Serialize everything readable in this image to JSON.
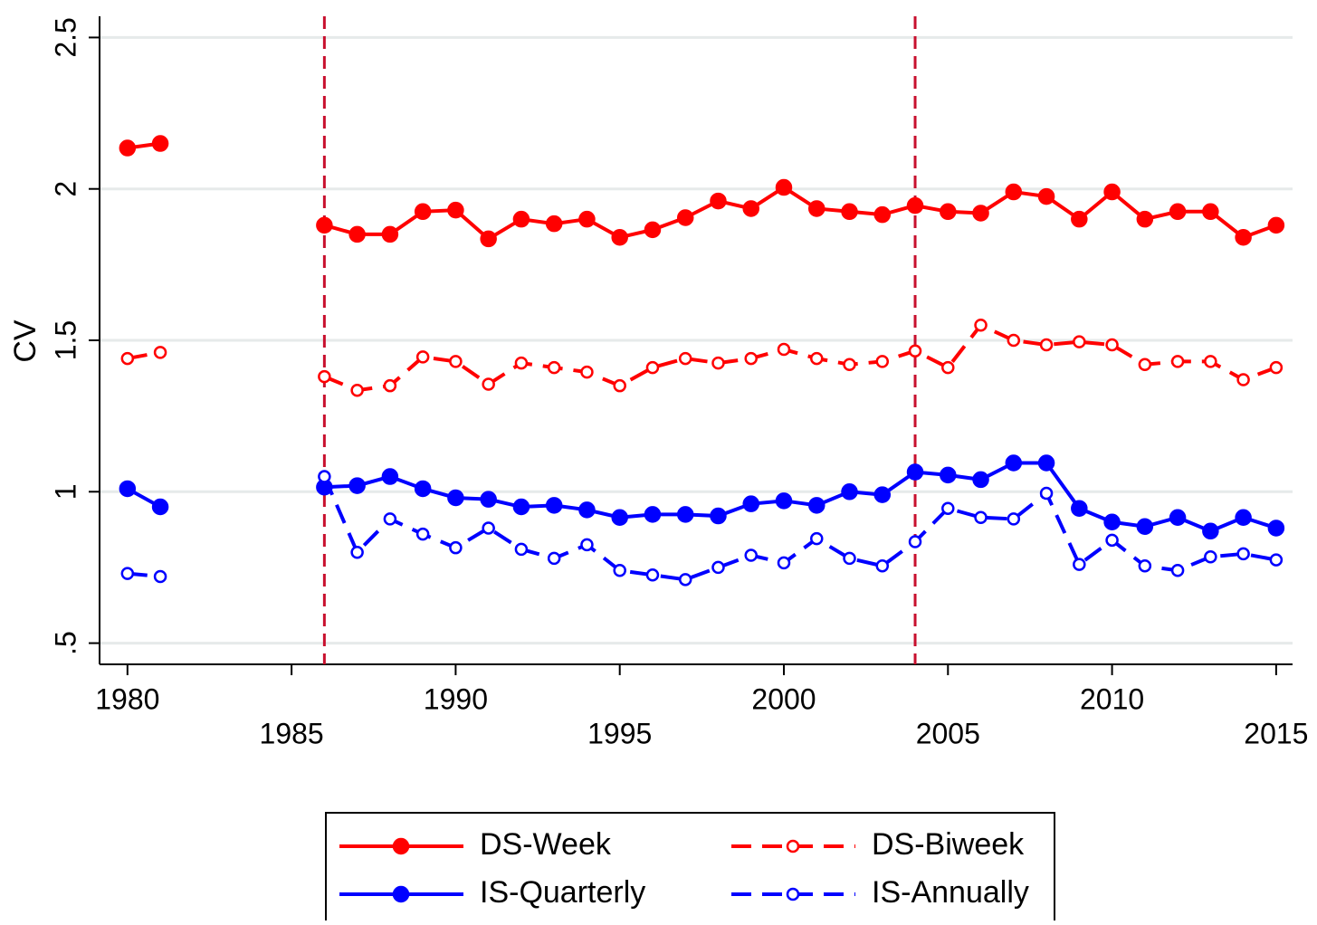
{
  "chart_data": {
    "type": "line",
    "y_label": "CV",
    "x": [
      1980,
      1981,
      1982,
      1983,
      1984,
      1985,
      1986,
      1987,
      1988,
      1989,
      1990,
      1991,
      1992,
      1993,
      1994,
      1995,
      1996,
      1997,
      1998,
      1999,
      2000,
      2001,
      2002,
      2003,
      2004,
      2005,
      2006,
      2007,
      2008,
      2009,
      2010,
      2011,
      2012,
      2013,
      2014,
      2015
    ],
    "series": [
      {
        "name": "DS-Week",
        "color": "#ff0000",
        "dashed": false,
        "marker": "filled",
        "values": [
          2.135,
          2.15,
          null,
          null,
          null,
          null,
          1.88,
          1.85,
          1.85,
          1.925,
          1.93,
          1.835,
          1.9,
          1.885,
          1.9,
          1.84,
          1.865,
          1.905,
          1.96,
          1.935,
          2.005,
          1.935,
          1.925,
          1.915,
          1.945,
          1.925,
          1.92,
          1.99,
          1.975,
          1.9,
          1.99,
          1.9,
          1.925,
          1.925,
          1.84,
          1.88
        ]
      },
      {
        "name": "DS-Biweek",
        "color": "#ff0000",
        "dashed": true,
        "marker": "hollow",
        "values": [
          1.44,
          1.46,
          null,
          null,
          null,
          null,
          1.38,
          1.335,
          1.35,
          1.445,
          1.43,
          1.355,
          1.425,
          1.41,
          1.395,
          1.35,
          1.41,
          1.44,
          1.425,
          1.44,
          1.47,
          1.44,
          1.42,
          1.43,
          1.465,
          1.41,
          1.55,
          1.5,
          1.485,
          1.495,
          1.485,
          1.42,
          1.43,
          1.43,
          1.37,
          1.41
        ]
      },
      {
        "name": "IS-Quarterly",
        "color": "#0000ff",
        "dashed": false,
        "marker": "filled",
        "values": [
          1.01,
          0.95,
          null,
          null,
          null,
          null,
          1.015,
          1.02,
          1.05,
          1.01,
          0.98,
          0.975,
          0.95,
          0.955,
          0.94,
          0.915,
          0.925,
          0.925,
          0.92,
          0.96,
          0.97,
          0.955,
          1.0,
          0.99,
          1.065,
          1.055,
          1.04,
          1.095,
          1.095,
          0.945,
          0.9,
          0.885,
          0.915,
          0.87,
          0.915,
          0.88
        ]
      },
      {
        "name": "IS-Annually",
        "color": "#0000ff",
        "dashed": true,
        "marker": "hollow",
        "values": [
          0.73,
          0.72,
          null,
          null,
          null,
          null,
          1.05,
          0.8,
          0.91,
          0.86,
          0.815,
          0.88,
          0.81,
          0.78,
          0.825,
          0.74,
          0.725,
          0.71,
          0.75,
          0.79,
          0.765,
          0.845,
          0.78,
          0.755,
          0.835,
          0.945,
          0.915,
          0.91,
          0.995,
          0.76,
          0.84,
          0.755,
          0.74,
          0.785,
          0.795,
          0.775
        ]
      }
    ],
    "xlim": [
      1979.15,
      2015.5
    ],
    "xticks": [
      1980,
      1985,
      1990,
      1995,
      2000,
      2005,
      2010,
      2015
    ],
    "ylim": [
      0.43,
      2.57
    ],
    "yticks": [
      {
        "value": 0.5,
        "label": ".5"
      },
      1,
      1.5,
      2,
      2.5
    ],
    "grid": true,
    "vlines": [
      1986,
      2004
    ],
    "vline_color": "#c8102e",
    "legend": "bottom"
  }
}
